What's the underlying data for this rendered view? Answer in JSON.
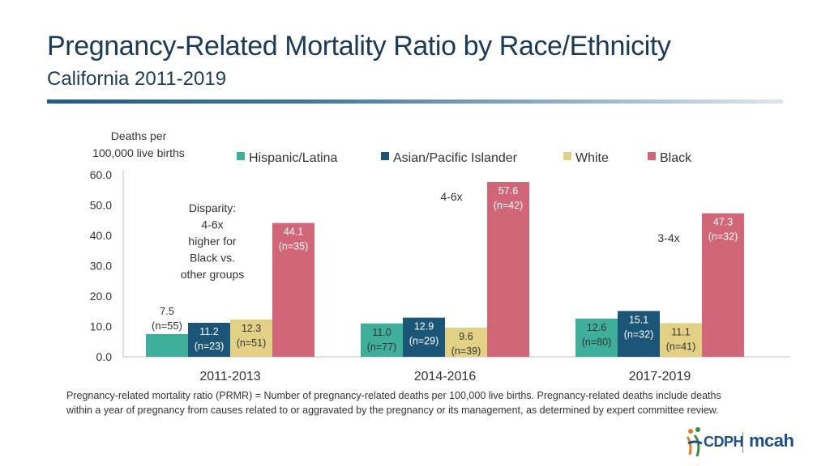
{
  "header": {
    "title": "Pregnancy-Related Mortality Ratio by Race/Ethnicity",
    "subtitle": "California 2011-2019"
  },
  "footnote": "Pregnancy-related mortality ratio (PRMR) = Number of pregnancy-related deaths per 100,000 live births. Pregnancy-related deaths include deaths within a year of pregnancy from causes related to or aggravated by the pregnancy or its management, as determined by expert committee review.",
  "logo": {
    "org": "CDPH",
    "program": "mcah"
  },
  "colors": {
    "hispanic": "#3fae9a",
    "api": "#1b5577",
    "white": "#e2d184",
    "black": "#d06677"
  },
  "chart_data": {
    "type": "bar",
    "ylabel_lines": [
      "Deaths per",
      "100,000 live births"
    ],
    "ylim": [
      0,
      60
    ],
    "yticks": [
      "0.0",
      "10.0",
      "20.0",
      "30.0",
      "40.0",
      "50.0",
      "60.0"
    ],
    "categories": [
      "2011-2013",
      "2014-2016",
      "2017-2019"
    ],
    "series": [
      {
        "name": "Hispanic/Latina",
        "color": "#3fae9a",
        "values": [
          7.5,
          11.0,
          12.6
        ],
        "labels": [
          "7.5",
          "11.0",
          "12.6"
        ],
        "n": [
          "(n=55)",
          "(n=77)",
          "(n=80)"
        ]
      },
      {
        "name": "Asian/Pacific Islander",
        "color": "#1b5577",
        "values": [
          11.2,
          12.9,
          15.1
        ],
        "labels": [
          "11.2",
          "12.9",
          "15.1"
        ],
        "n": [
          "(n=23)",
          "(n=29)",
          "(n=32)"
        ]
      },
      {
        "name": "White",
        "color": "#e2d184",
        "values": [
          12.3,
          9.6,
          11.1
        ],
        "labels": [
          "12.3",
          "9.6",
          "11.1"
        ],
        "n": [
          "(n=51)",
          "(n=39)",
          "(n=41)"
        ]
      },
      {
        "name": "Black",
        "color": "#d06677",
        "values": [
          44.1,
          57.6,
          47.3
        ],
        "labels": [
          "44.1",
          "57.6",
          "47.3"
        ],
        "n": [
          "(n=35)",
          "(n=42)",
          "(n=32)"
        ]
      }
    ],
    "annotations": {
      "disparity_lines": [
        "Disparity:",
        "4-6x",
        "higher for",
        "Black vs.",
        "other groups"
      ],
      "group2": "4-6x",
      "group3": "3-4x"
    }
  }
}
